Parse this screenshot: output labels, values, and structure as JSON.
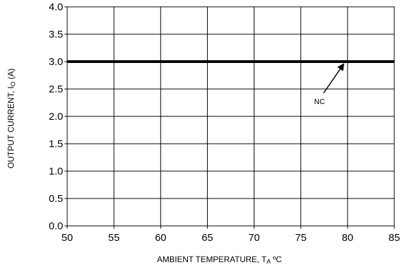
{
  "chart_data": {
    "type": "line",
    "title": "",
    "xlabel": "AMBIENT TEMPERATURE, T",
    "xlabel_sub": "A",
    "xlabel_unit": " ºC",
    "ylabel": "OUTPUT CURRENT, I",
    "ylabel_sub": "O",
    "ylabel_unit": " (A)",
    "xlim": [
      50,
      85
    ],
    "ylim": [
      0,
      4
    ],
    "xticks": [
      "50",
      "55",
      "60",
      "65",
      "70",
      "75",
      "80",
      "85"
    ],
    "yticks": [
      "0.0",
      "0.5",
      "1.0",
      "1.5",
      "2.0",
      "2.5",
      "3.0",
      "3.5",
      "4.0"
    ],
    "grid": true,
    "series": [
      {
        "x": [
          50,
          85
        ],
        "y": [
          3.0,
          3.0
        ]
      }
    ],
    "annotations": [
      {
        "text": "NC",
        "x": 79.6,
        "y": 2.96,
        "text_x": 77.0,
        "text_y": 2.3
      }
    ]
  }
}
